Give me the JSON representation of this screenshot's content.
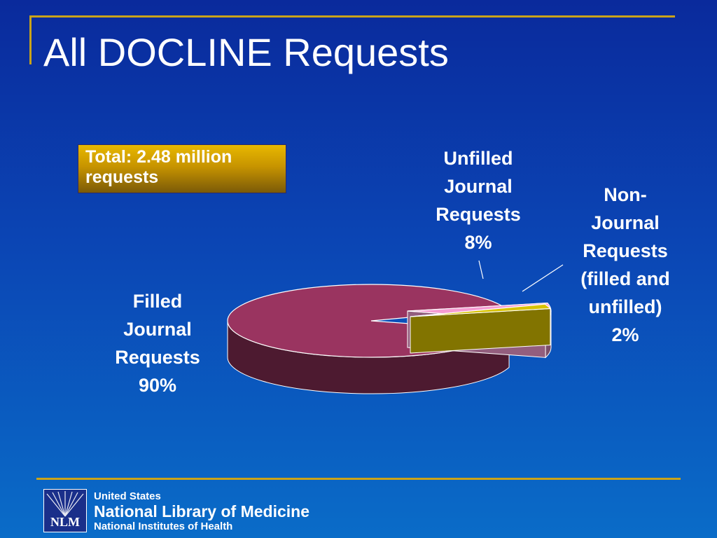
{
  "slide": {
    "title": "All DOCLINE Requests",
    "total_box": "Total: 2.48 million requests"
  },
  "chart_data": {
    "type": "pie",
    "title": "",
    "style": "3d-exploded",
    "slices": [
      {
        "label_lines": [
          "Filled",
          "Journal",
          "Requests",
          "90%"
        ],
        "value": 90,
        "color": "#9a3460"
      },
      {
        "label_lines": [
          "Unfilled",
          "Journal",
          "Requests",
          "8%"
        ],
        "value": 8,
        "color": "#f59cd2"
      },
      {
        "label_lines": [
          "Non-",
          "Journal",
          "Requests",
          "(filled and",
          "unfilled)",
          "2%"
        ],
        "value": 2,
        "color": "#d8c200"
      }
    ]
  },
  "footer": {
    "logo_text": "NLM",
    "line1": "United States",
    "line2": "National Library of Medicine",
    "line3": "National Institutes of Health"
  },
  "colors": {
    "accent": "#c9a31a",
    "background_top": "#0a2a9c",
    "background_bottom": "#0a6cc8"
  }
}
